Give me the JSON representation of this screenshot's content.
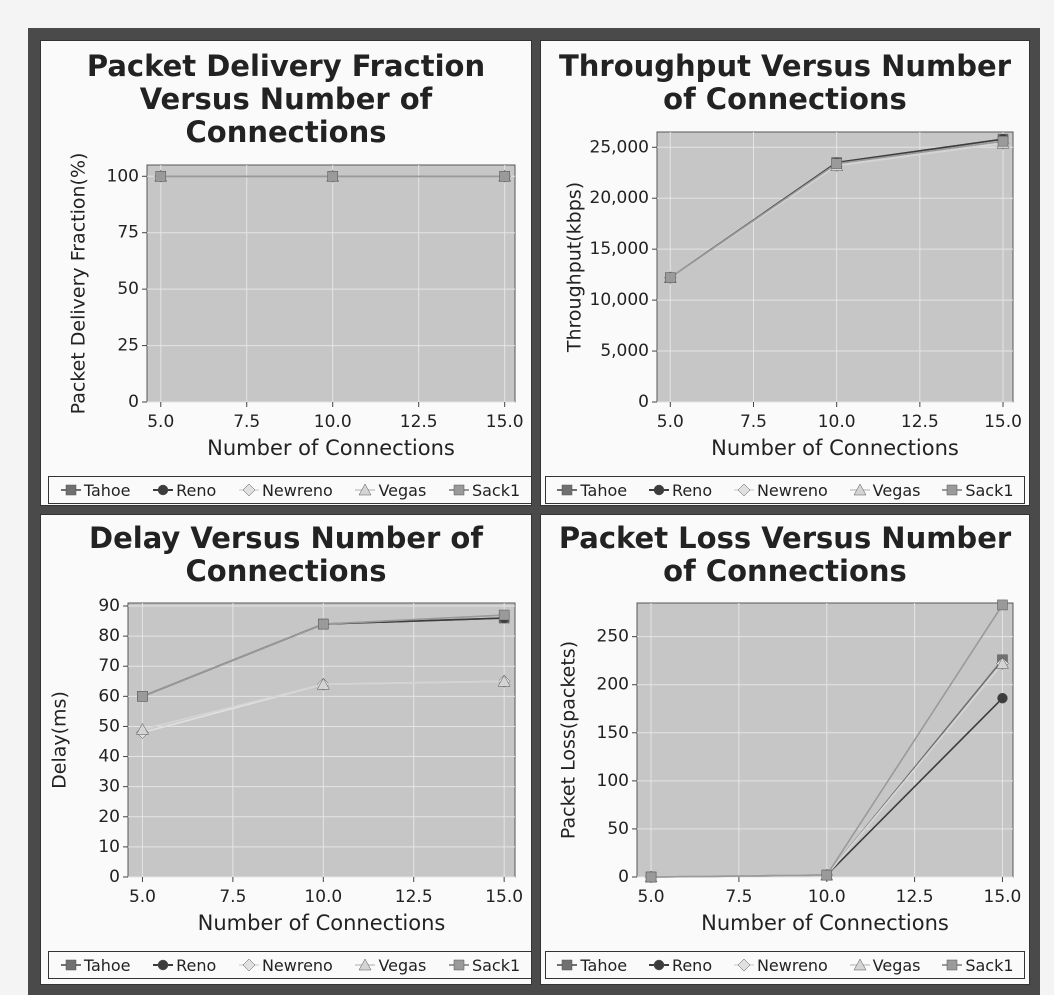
{
  "chart_data": [
    {
      "type": "line",
      "title": "Packet Delivery Fraction Versus Number of Connections",
      "x_label": "Number of Connections",
      "y_label": "Packet Delivery Fraction(%)",
      "x": [
        5,
        10,
        15
      ],
      "xlim": [
        4.6,
        15.3
      ],
      "xticks": [
        {
          "value": 5,
          "label": "5.0"
        },
        {
          "value": 7.5,
          "label": "7.5"
        },
        {
          "value": 10,
          "label": "10.0"
        },
        {
          "value": 12.5,
          "label": "12.5"
        },
        {
          "value": 15,
          "label": "15.0"
        }
      ],
      "ylim": [
        0,
        105
      ],
      "yticks": [
        0,
        25,
        50,
        75,
        100
      ],
      "grid": true,
      "series": [
        {
          "name": "Tahoe",
          "color": "#707070",
          "values": [
            100,
            100,
            100
          ]
        },
        {
          "name": "Reno",
          "color": "#3c3c3c",
          "values": [
            100,
            100,
            100
          ]
        },
        {
          "name": "Newreno",
          "color": "#e0e0e0",
          "values": [
            100,
            100,
            100
          ]
        },
        {
          "name": "Vegas",
          "color": "#d4d4d4",
          "values": [
            100,
            100,
            100
          ]
        },
        {
          "name": "Sack1",
          "color": "#9a9a9a",
          "values": [
            100,
            100,
            100
          ]
        }
      ]
    },
    {
      "type": "line",
      "title": "Throughput Versus Number of Connections",
      "x_label": "Number of Connections",
      "y_label": "Throughput(kbps)",
      "x": [
        5,
        10,
        15
      ],
      "xlim": [
        4.6,
        15.3
      ],
      "xticks": [
        {
          "value": 5,
          "label": "5.0"
        },
        {
          "value": 7.5,
          "label": "7.5"
        },
        {
          "value": 10,
          "label": "10.0"
        },
        {
          "value": 12.5,
          "label": "12.5"
        },
        {
          "value": 15,
          "label": "15.0"
        }
      ],
      "ylim": [
        0,
        26500
      ],
      "yticks": [
        0,
        {
          "value": 5000,
          "label": "5,000"
        },
        {
          "value": 10000,
          "label": "10,000"
        },
        {
          "value": 15000,
          "label": "15,000"
        },
        {
          "value": 20000,
          "label": "20,000"
        },
        {
          "value": 25000,
          "label": "25,000"
        }
      ],
      "grid": true,
      "series": [
        {
          "name": "Tahoe",
          "color": "#707070",
          "values": [
            12200,
            23500,
            25800
          ]
        },
        {
          "name": "Reno",
          "color": "#3c3c3c",
          "values": [
            12200,
            23500,
            25800
          ]
        },
        {
          "name": "Newreno",
          "color": "#e0e0e0",
          "values": [
            12200,
            23200,
            25400
          ]
        },
        {
          "name": "Vegas",
          "color": "#d4d4d4",
          "values": [
            12200,
            23200,
            25400
          ]
        },
        {
          "name": "Sack1",
          "color": "#9a9a9a",
          "values": [
            12200,
            23400,
            25600
          ]
        }
      ]
    },
    {
      "type": "line",
      "title": "Delay Versus Number of Connections",
      "x_label": "Number of Connections",
      "y_label": "Delay(ms)",
      "x": [
        5,
        10,
        15
      ],
      "xlim": [
        4.6,
        15.3
      ],
      "xticks": [
        {
          "value": 5,
          "label": "5.0"
        },
        {
          "value": 7.5,
          "label": "7.5"
        },
        {
          "value": 10,
          "label": "10.0"
        },
        {
          "value": 12.5,
          "label": "12.5"
        },
        {
          "value": 15,
          "label": "15.0"
        }
      ],
      "ylim": [
        0,
        91
      ],
      "yticks": [
        0,
        10,
        20,
        30,
        40,
        50,
        60,
        70,
        80,
        90
      ],
      "grid": true,
      "series": [
        {
          "name": "Tahoe",
          "color": "#707070",
          "values": [
            60,
            84,
            86
          ]
        },
        {
          "name": "Reno",
          "color": "#3c3c3c",
          "values": [
            60,
            84,
            86
          ]
        },
        {
          "name": "Newreno",
          "color": "#e0e0e0",
          "values": [
            48,
            64,
            65
          ]
        },
        {
          "name": "Vegas",
          "color": "#d4d4d4",
          "values": [
            49,
            64,
            65
          ]
        },
        {
          "name": "Sack1",
          "color": "#9a9a9a",
          "values": [
            60,
            84,
            87
          ]
        }
      ]
    },
    {
      "type": "line",
      "title": "Packet Loss Versus Number of Connections",
      "x_label": "Number of Connections",
      "y_label": "Packet Loss(packets)",
      "x": [
        5,
        10,
        15
      ],
      "xlim": [
        4.6,
        15.3
      ],
      "xticks": [
        {
          "value": 5,
          "label": "5.0"
        },
        {
          "value": 7.5,
          "label": "7.5"
        },
        {
          "value": 10,
          "label": "10.0"
        },
        {
          "value": 12.5,
          "label": "12.5"
        },
        {
          "value": 15,
          "label": "15.0"
        }
      ],
      "ylim": [
        0,
        285
      ],
      "yticks": [
        0,
        50,
        100,
        150,
        200,
        250
      ],
      "grid": true,
      "series": [
        {
          "name": "Tahoe",
          "color": "#707070",
          "values": [
            0,
            2,
            226
          ]
        },
        {
          "name": "Reno",
          "color": "#3c3c3c",
          "values": [
            0,
            2,
            186
          ]
        },
        {
          "name": "Newreno",
          "color": "#e0e0e0",
          "values": [
            0,
            2,
            222
          ]
        },
        {
          "name": "Vegas",
          "color": "#d4d4d4",
          "values": [
            0,
            2,
            222
          ]
        },
        {
          "name": "Sack1",
          "color": "#9a9a9a",
          "values": [
            0,
            2,
            283
          ]
        }
      ]
    }
  ]
}
